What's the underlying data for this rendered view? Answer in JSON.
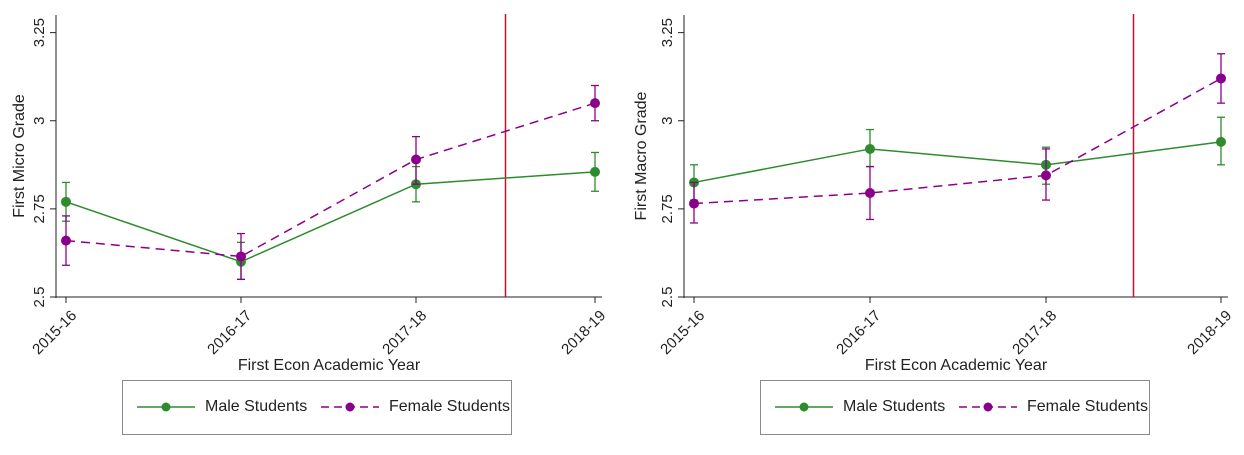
{
  "chart_data": [
    {
      "type": "line",
      "title": "",
      "xlabel": "First Econ Academic Year",
      "ylabel": "First Micro Grade",
      "categories": [
        "2015-16",
        "2016-17",
        "2017-18",
        "2018-19"
      ],
      "ylim": [
        2.5,
        3.3
      ],
      "yticks": [
        2.5,
        2.75,
        3,
        3.25
      ],
      "ytick_labels": [
        "2.5",
        "2.75",
        "3",
        "3.25"
      ],
      "vline_at": 2.5,
      "vline_color": "#c8102e",
      "series": [
        {
          "name": "Male Students",
          "color": "#2e8b2e",
          "dash": false,
          "values": [
            2.77,
            2.6,
            2.82,
            2.855
          ],
          "ci_low": [
            2.715,
            2.55,
            2.77,
            2.8
          ],
          "ci_high": [
            2.825,
            2.655,
            2.87,
            2.91
          ]
        },
        {
          "name": "Female Students",
          "color": "#8b008b",
          "dash": true,
          "values": [
            2.66,
            2.615,
            2.89,
            3.05
          ],
          "ci_low": [
            2.59,
            2.55,
            2.82,
            3.0
          ],
          "ci_high": [
            2.73,
            2.68,
            2.955,
            3.1
          ]
        }
      ],
      "legend": "bottom",
      "grid": false
    },
    {
      "type": "line",
      "title": "",
      "xlabel": "First Econ Academic Year",
      "ylabel": "First Macro Grade",
      "categories": [
        "2015-16",
        "2016-17",
        "2017-18",
        "2018-19"
      ],
      "ylim": [
        2.5,
        3.3
      ],
      "yticks": [
        2.5,
        2.75,
        3,
        3.25
      ],
      "ytick_labels": [
        "2.5",
        "2.75",
        "3",
        "3.25"
      ],
      "vline_at": 2.5,
      "vline_color": "#c8102e",
      "series": [
        {
          "name": "Male Students",
          "color": "#2e8b2e",
          "dash": false,
          "values": [
            2.825,
            2.92,
            2.875,
            2.94
          ],
          "ci_low": [
            2.775,
            2.87,
            2.82,
            2.875
          ],
          "ci_high": [
            2.875,
            2.975,
            2.925,
            3.01
          ]
        },
        {
          "name": "Female Students",
          "color": "#8b008b",
          "dash": true,
          "values": [
            2.765,
            2.795,
            2.845,
            3.12
          ],
          "ci_low": [
            2.71,
            2.72,
            2.775,
            3.05
          ],
          "ci_high": [
            2.825,
            2.87,
            2.92,
            3.19
          ]
        }
      ],
      "legend": "bottom",
      "grid": false
    }
  ]
}
